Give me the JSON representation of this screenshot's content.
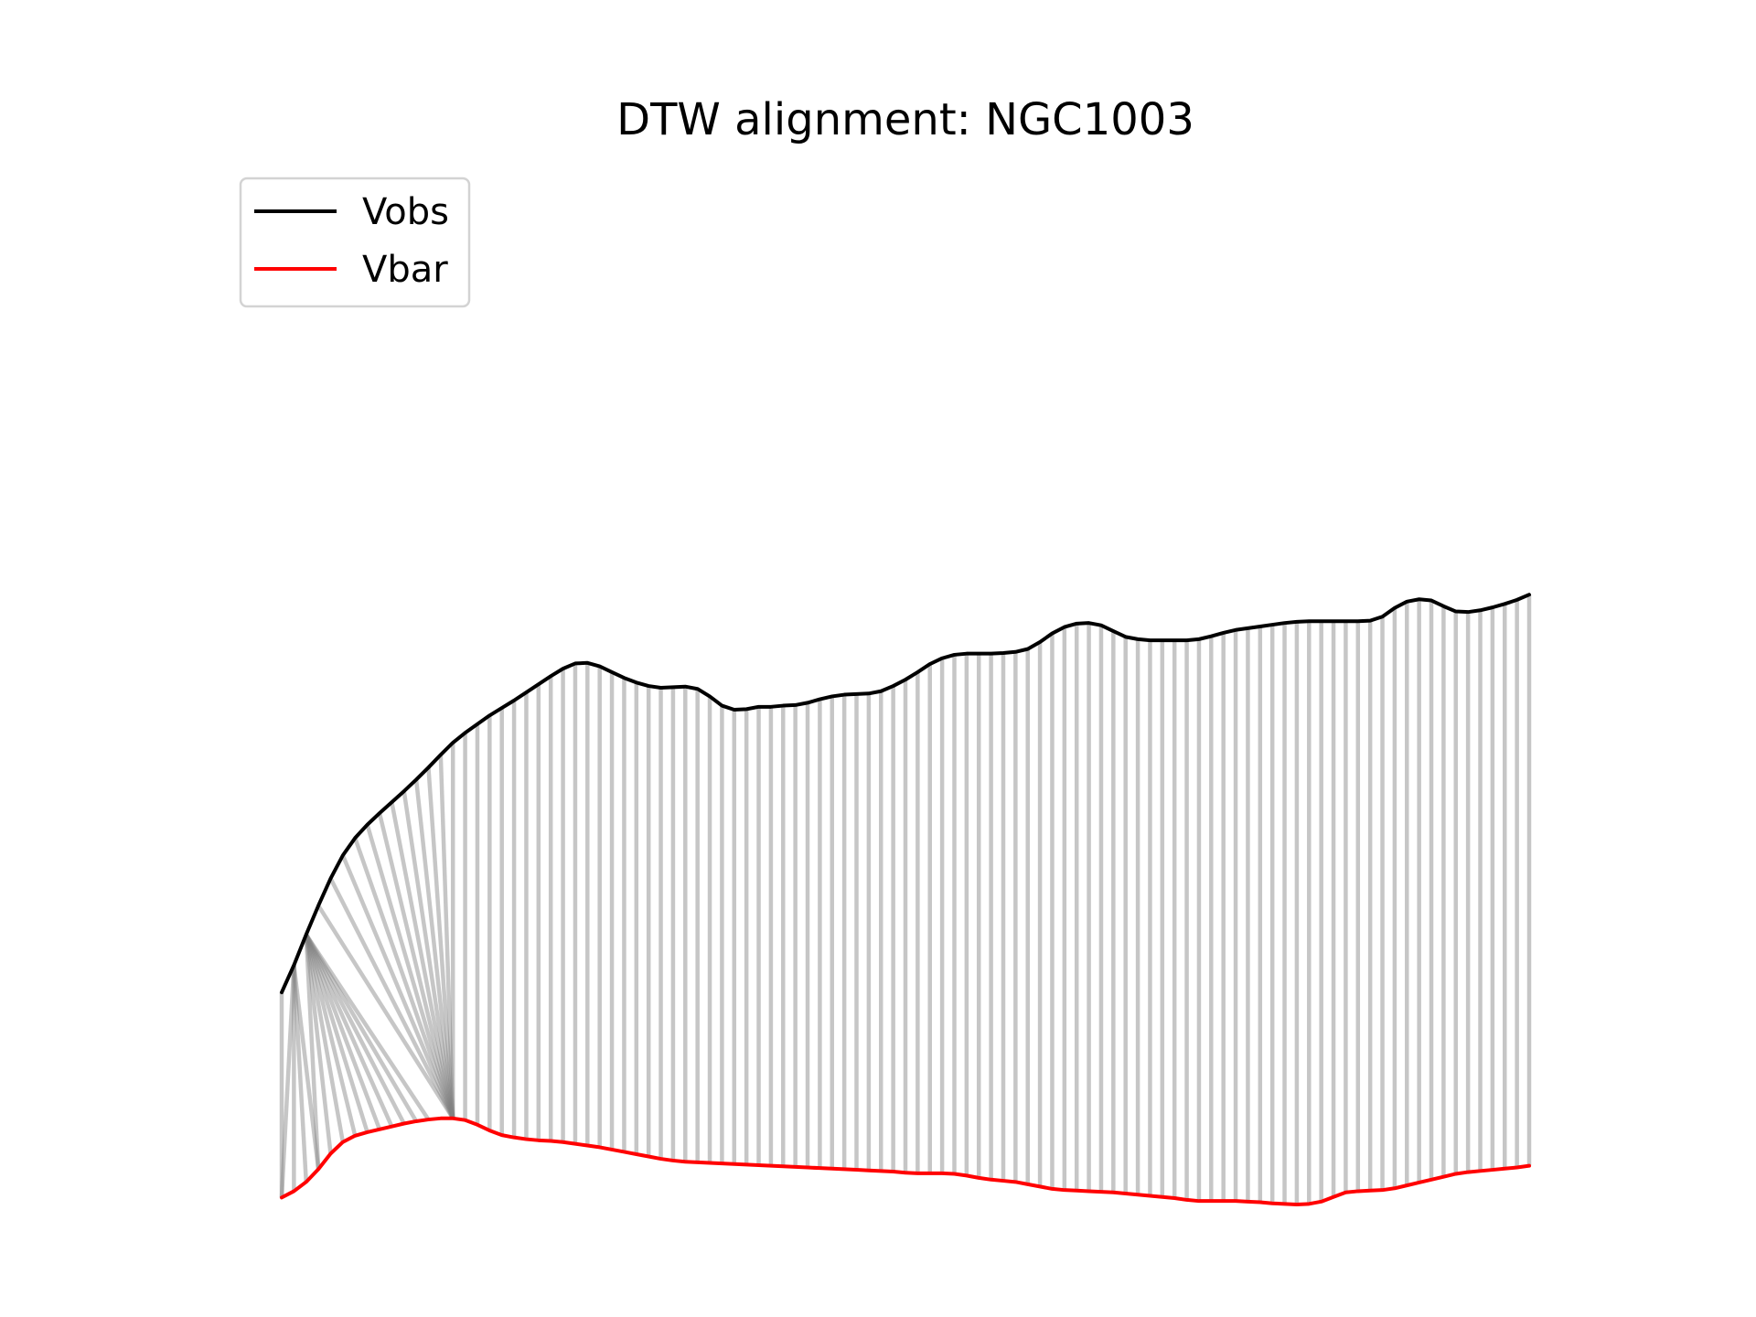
{
  "chart_data": {
    "type": "line",
    "title": "DTW alignment: NGC1003",
    "xlabel": "",
    "ylabel": "",
    "axes_visible": false,
    "grid": false,
    "legend": {
      "placement": "top-left",
      "entries": [
        "Vobs",
        "Vbar"
      ]
    },
    "series": [
      {
        "name": "Vobs",
        "color": "#000000",
        "values": [
          57.4,
          62.1,
          67.4,
          72.4,
          77.1,
          81.1,
          84.1,
          86.4,
          88.4,
          90.3,
          92.2,
          94.2,
          96.3,
          98.5,
          100.6,
          102.3,
          103.8,
          105.3,
          106.6,
          107.9,
          109.3,
          110.7,
          112.1,
          113.4,
          114.3,
          114.4,
          113.8,
          112.8,
          111.8,
          111.0,
          110.4,
          110.1,
          110.2,
          110.3,
          109.9,
          108.6,
          107.0,
          106.3,
          106.4,
          106.8,
          106.8,
          107.0,
          107.1,
          107.5,
          108.1,
          108.6,
          108.9,
          109.0,
          109.1,
          109.5,
          110.4,
          111.5,
          112.8,
          114.2,
          115.2,
          115.8,
          116.0,
          116.0,
          116.0,
          116.1,
          116.3,
          116.8,
          118.0,
          119.5,
          120.6,
          121.2,
          121.3,
          120.9,
          119.9,
          118.9,
          118.5,
          118.3,
          118.3,
          118.3,
          118.3,
          118.5,
          119.0,
          119.6,
          120.1,
          120.4,
          120.7,
          121.0,
          121.3,
          121.5,
          121.6,
          121.6,
          121.6,
          121.6,
          121.6,
          121.7,
          122.4,
          123.9,
          125.0,
          125.4,
          125.2,
          124.2,
          123.3,
          123.2,
          123.5,
          124.0,
          124.6,
          125.3,
          126.2
        ]
      },
      {
        "name": "Vbar",
        "color": "#ff0000",
        "values": [
          21.9,
          23.0,
          24.6,
          26.8,
          29.5,
          31.5,
          32.6,
          33.2,
          33.7,
          34.2,
          34.7,
          35.1,
          35.4,
          35.6,
          35.6,
          35.3,
          34.5,
          33.5,
          32.7,
          32.3,
          32.0,
          31.8,
          31.7,
          31.5,
          31.2,
          30.9,
          30.6,
          30.2,
          29.8,
          29.4,
          29.0,
          28.6,
          28.3,
          28.1,
          28.0,
          27.9,
          27.8,
          27.7,
          27.6,
          27.5,
          27.4,
          27.3,
          27.2,
          27.1,
          27.0,
          26.9,
          26.8,
          26.7,
          26.6,
          26.5,
          26.4,
          26.2,
          26.1,
          26.1,
          26.1,
          26.0,
          25.7,
          25.3,
          25.0,
          24.8,
          24.6,
          24.2,
          23.8,
          23.4,
          23.2,
          23.1,
          23.0,
          22.9,
          22.8,
          22.6,
          22.4,
          22.2,
          22.0,
          21.8,
          21.5,
          21.3,
          21.3,
          21.3,
          21.3,
          21.2,
          21.1,
          20.9,
          20.8,
          20.7,
          20.8,
          21.2,
          22.0,
          22.8,
          23.0,
          23.1,
          23.2,
          23.5,
          24.0,
          24.5,
          25.0,
          25.5,
          26.0,
          26.3,
          26.5,
          26.7,
          26.9,
          27.1,
          27.4
        ]
      }
    ],
    "alignment": {
      "color": "#808080",
      "pairs": [
        [
          0,
          0
        ],
        [
          1,
          0
        ],
        [
          1,
          1
        ],
        [
          1,
          2
        ],
        [
          1,
          3
        ],
        [
          2,
          3
        ],
        [
          2,
          4
        ],
        [
          2,
          5
        ],
        [
          2,
          6
        ],
        [
          2,
          7
        ],
        [
          2,
          8
        ],
        [
          2,
          9
        ],
        [
          2,
          10
        ],
        [
          2,
          11
        ],
        [
          2,
          12
        ],
        [
          3,
          14
        ],
        [
          4,
          14
        ],
        [
          5,
          14
        ],
        [
          6,
          14
        ],
        [
          7,
          14
        ],
        [
          8,
          14
        ],
        [
          9,
          14
        ],
        [
          10,
          14
        ],
        [
          11,
          14
        ],
        [
          12,
          14
        ],
        [
          13,
          14
        ],
        [
          14,
          14
        ]
      ]
    }
  }
}
